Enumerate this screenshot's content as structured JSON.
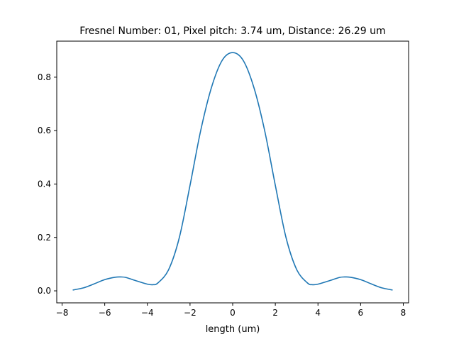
{
  "chart_data": {
    "type": "line",
    "title": "Fresnel Number: 01, Pixel pitch: 3.74 um, Distance: 26.29 um",
    "xlabel": "length (um)",
    "ylabel": "",
    "xlim": [
      -8.25,
      8.25
    ],
    "ylim": [
      -0.045,
      0.935
    ],
    "xticks": [
      -8,
      -6,
      -4,
      -2,
      0,
      2,
      4,
      6,
      8
    ],
    "xtick_labels": [
      "−8",
      "−6",
      "−4",
      "−2",
      "0",
      "2",
      "4",
      "6",
      "8"
    ],
    "yticks": [
      0.0,
      0.2,
      0.4,
      0.6,
      0.8
    ],
    "ytick_labels": [
      "0.0",
      "0.2",
      "0.4",
      "0.6",
      "0.8"
    ],
    "grid": false,
    "line_color": "#1f77b4",
    "series": [
      {
        "x": [
          -7.5,
          -7.0,
          -6.5,
          -6.0,
          -5.5,
          -5.25,
          -5.0,
          -4.5,
          -4.0,
          -3.75,
          -3.5,
          -3.0,
          -2.5,
          -2.0,
          -1.5,
          -1.0,
          -0.5,
          0.0,
          0.5,
          1.0,
          1.5,
          2.0,
          2.5,
          3.0,
          3.5,
          3.75,
          4.0,
          4.5,
          5.0,
          5.25,
          5.5,
          6.0,
          6.5,
          7.0,
          7.5
        ],
        "values": [
          0.003,
          0.011,
          0.026,
          0.042,
          0.051,
          0.052,
          0.05,
          0.037,
          0.025,
          0.023,
          0.03,
          0.08,
          0.2,
          0.395,
          0.6,
          0.76,
          0.862,
          0.892,
          0.862,
          0.76,
          0.6,
          0.395,
          0.2,
          0.08,
          0.03,
          0.023,
          0.025,
          0.037,
          0.05,
          0.052,
          0.051,
          0.042,
          0.026,
          0.011,
          0.003
        ]
      }
    ]
  }
}
